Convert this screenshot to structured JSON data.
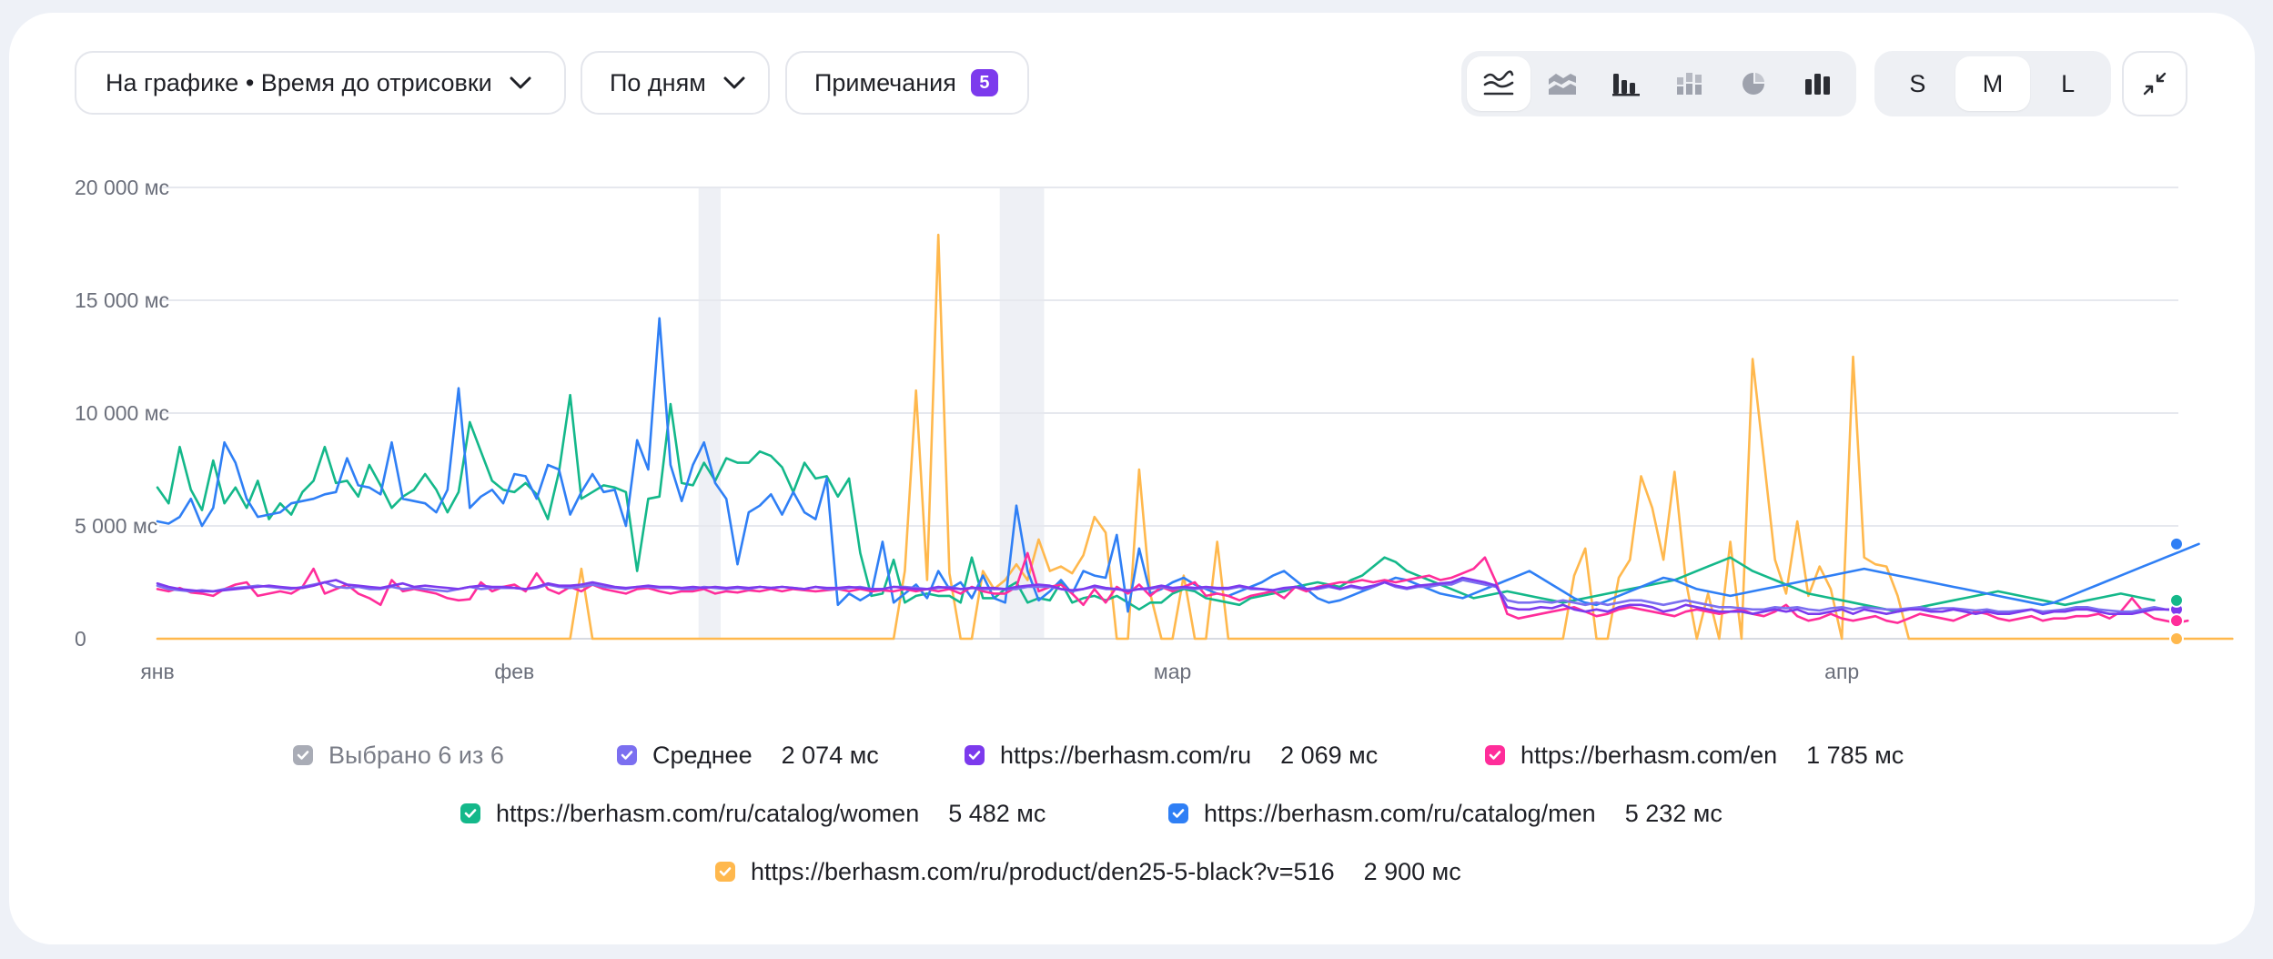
{
  "toolbar": {
    "metric_label": "На графике • Время до отрисовки",
    "grouping_label": "По дням",
    "notes_label": "Примечания",
    "notes_count": "5",
    "chart_types": [
      "line-chart-icon",
      "stacked-area-icon",
      "bar-chart-icon",
      "stacked-bar-icon",
      "pie-chart-icon",
      "column-chart-icon"
    ],
    "active_chart_type": "line-chart-icon",
    "sizes": [
      "S",
      "M",
      "L"
    ],
    "active_size": "M"
  },
  "legend": {
    "selected_label": "Выбрано 6 из 6",
    "series": [
      {
        "name": "Среднее",
        "value": "2 074 мс",
        "color": "#7b6ff0"
      },
      {
        "name": "https://berhasm.com/ru",
        "value": "2 069 мс",
        "color": "#7c3aed"
      },
      {
        "name": "https://berhasm.com/en",
        "value": "1 785 мс",
        "color": "#ff2d9a"
      },
      {
        "name": "https://berhasm.com/ru/catalog/women",
        "value": "5 482 мс",
        "color": "#14b88a"
      },
      {
        "name": "https://berhasm.com/ru/catalog/men",
        "value": "5 232 мс",
        "color": "#2f7ff5"
      },
      {
        "name": "https://berhasm.com/ru/product/den25-5-black?v=516",
        "value": "2 900 мс",
        "color": "#ffb84d"
      }
    ]
  },
  "chart_data": {
    "type": "line",
    "ylim": [
      0,
      20000
    ],
    "y_ticks": [
      "20 000 мс",
      "15 000 мс",
      "10 000 мс",
      "5 000 мс",
      "0"
    ],
    "y_tick_values": [
      20000,
      15000,
      10000,
      5000,
      0
    ],
    "x_tick_labels": [
      "янв",
      "фев",
      "мар",
      "апр"
    ],
    "x_tick_days": [
      1,
      33,
      92,
      152
    ],
    "day_count": 182,
    "annotation_days": [
      [
        50,
        51
      ],
      [
        77,
        80
      ]
    ],
    "series": [
      {
        "name": "Среднее",
        "color": "#7b6ff0",
        "values": [
          2350,
          2200,
          2150,
          2100,
          2150,
          2100,
          2200,
          2250,
          2300,
          2350,
          2300,
          2250,
          2200,
          2300,
          2400,
          2500,
          2300,
          2250,
          2300,
          2200,
          2200,
          2300,
          2200,
          2250,
          2200,
          2150,
          2100,
          2200,
          2300,
          2200,
          2250,
          2250,
          2250,
          2200,
          2250,
          2400,
          2300,
          2250,
          2300,
          2400,
          2300,
          2250,
          2200,
          2300,
          2300,
          2250,
          2250,
          2200,
          2200,
          2300,
          2250,
          2200,
          2250,
          2200,
          2300,
          2250,
          2300,
          2250,
          2200,
          2300,
          2200,
          2200,
          2250,
          2300,
          2200,
          2200,
          2300,
          2300,
          2250,
          2200,
          2250,
          2300,
          2200,
          2250,
          2200,
          2200,
          2200,
          2200,
          2300,
          2300,
          2300,
          2200,
          2100,
          2200,
          2300,
          2200,
          2200,
          2150,
          2200,
          2200,
          2300,
          2200,
          2250,
          2200,
          2250,
          2200,
          2200,
          2300,
          2200,
          2200,
          2150,
          2200,
          2300,
          2200,
          2200,
          2300,
          2200,
          2300,
          2200,
          2300,
          2500,
          2300,
          2200,
          2300,
          2300,
          2400,
          2400,
          2600,
          2500,
          2400,
          2300,
          1700,
          1600,
          1600,
          1650,
          1600,
          1700,
          1600,
          1500,
          1600,
          1500,
          1600,
          1700,
          1700,
          1600,
          1500,
          1600,
          1700,
          1600,
          1500,
          1400,
          1400,
          1350,
          1300,
          1300,
          1400,
          1350,
          1400,
          1300,
          1250,
          1350,
          1400,
          1300,
          1400,
          1350,
          1300,
          1300,
          1350,
          1400,
          1300,
          1350,
          1350,
          1300,
          1250,
          1300,
          1200,
          1200,
          1250,
          1300,
          1200,
          1250,
          1300,
          1400,
          1400,
          1300,
          1250,
          1200,
          1200,
          1300,
          1400,
          1300,
          1250
        ]
      },
      {
        "name": "https://berhasm.com/ru",
        "color": "#7c3aed",
        "values": [
          2450,
          2300,
          2200,
          2150,
          2100,
          2100,
          2150,
          2200,
          2250,
          2300,
          2350,
          2300,
          2250,
          2250,
          2350,
          2500,
          2600,
          2400,
          2350,
          2300,
          2250,
          2350,
          2450,
          2300,
          2350,
          2300,
          2250,
          2200,
          2300,
          2350,
          2300,
          2300,
          2250,
          2200,
          2300,
          2450,
          2350,
          2350,
          2400,
          2500,
          2400,
          2300,
          2250,
          2300,
          2350,
          2300,
          2300,
          2250,
          2300,
          2250,
          2300,
          2250,
          2300,
          2250,
          2300,
          2250,
          2300,
          2250,
          2200,
          2300,
          2250,
          2250,
          2300,
          2250,
          2200,
          2200,
          2300,
          2250,
          2200,
          2200,
          2300,
          2250,
          2200,
          2250,
          2250,
          2250,
          2200,
          2300,
          2350,
          2400,
          2350,
          2200,
          2150,
          2200,
          2350,
          2250,
          2200,
          2100,
          2200,
          2250,
          2350,
          2250,
          2300,
          2250,
          2300,
          2250,
          2250,
          2350,
          2250,
          2200,
          2150,
          2250,
          2300,
          2200,
          2250,
          2350,
          2200,
          2350,
          2250,
          2350,
          2500,
          2350,
          2250,
          2350,
          2400,
          2450,
          2500,
          2700,
          2600,
          2500,
          2350,
          1400,
          1300,
          1300,
          1400,
          1350,
          1500,
          1300,
          1200,
          1300,
          1200,
          1400,
          1500,
          1500,
          1400,
          1200,
          1300,
          1500,
          1400,
          1300,
          1200,
          1200,
          1200,
          1100,
          1200,
          1300,
          1200,
          1300,
          1100,
          1100,
          1200,
          1300,
          1100,
          1300,
          1200,
          1100,
          1200,
          1300,
          1300,
          1200,
          1200,
          1300,
          1200,
          1100,
          1200,
          1100,
          1100,
          1200,
          1300,
          1100,
          1200,
          1200,
          1300,
          1300,
          1200,
          1100,
          1100,
          1100,
          1200,
          1300,
          1300,
          1300
        ]
      },
      {
        "name": "https://berhasm.com/en",
        "color": "#ff2d9a",
        "values": [
          2200,
          2100,
          2250,
          2050,
          2000,
          1900,
          2200,
          2400,
          2500,
          1900,
          2000,
          2100,
          2000,
          2300,
          3100,
          2000,
          2200,
          2400,
          2000,
          1800,
          1500,
          2600,
          2100,
          2200,
          2100,
          2000,
          1800,
          1700,
          1750,
          2500,
          2100,
          2300,
          2400,
          2100,
          2900,
          2200,
          2000,
          2300,
          2100,
          2400,
          2200,
          2100,
          2000,
          2200,
          2250,
          2100,
          2000,
          2100,
          2100,
          2200,
          2000,
          2100,
          2050,
          2150,
          2100,
          2200,
          2100,
          2200,
          2150,
          2100,
          2150,
          2200,
          2100,
          2200,
          2100,
          2150,
          2100,
          2200,
          2100,
          2200,
          2100,
          2200,
          2000,
          2300,
          2100,
          2000,
          2000,
          2300,
          3800,
          2100,
          2300,
          2400,
          2000,
          1500,
          2200,
          1600,
          2300,
          2000,
          2400,
          1900,
          2300,
          2100,
          2300,
          2500,
          1900,
          2000,
          1900,
          1700,
          1900,
          2000,
          2100,
          1800,
          2300,
          2100,
          2300,
          2400,
          2500,
          2500,
          2600,
          2500,
          2600,
          2500,
          2600,
          2700,
          2800,
          2600,
          2700,
          2900,
          3100,
          3600,
          2500,
          1100,
          900,
          1000,
          1100,
          1200,
          1300,
          1400,
          1200,
          1000,
          1100,
          1300,
          1400,
          1300,
          1200,
          1100,
          1000,
          1200,
          1300,
          1200,
          1100,
          1200,
          1300,
          1100,
          1000,
          1200,
          1500,
          1000,
          800,
          900,
          1100,
          900,
          800,
          900,
          1000,
          800,
          700,
          900,
          1100,
          1000,
          900,
          800,
          1000,
          1200,
          1100,
          900,
          800,
          900,
          1000,
          800,
          900,
          900,
          1000,
          1000,
          1100,
          900,
          1200,
          1800,
          1200,
          900,
          800,
          700,
          800
        ]
      },
      {
        "name": "https://berhasm.com/ru/catalog/women",
        "color": "#14b88a",
        "values": [
          6700,
          6000,
          8500,
          6600,
          5700,
          7900,
          6000,
          6700,
          5800,
          7000,
          5300,
          6000,
          5500,
          6500,
          7000,
          8500,
          6900,
          7000,
          6300,
          7700,
          6800,
          5800,
          6300,
          6600,
          7300,
          6600,
          5600,
          6500,
          9600,
          8300,
          7000,
          6600,
          6500,
          6900,
          6400,
          5300,
          7400,
          10800,
          6200,
          6500,
          6800,
          6700,
          6500,
          3000,
          6200,
          6300,
          10400,
          6900,
          6800,
          7800,
          7000,
          8000,
          7800,
          7800,
          8300,
          8100,
          7600,
          6500,
          7800,
          7100,
          7200,
          6300,
          7100,
          3800,
          1900,
          2000,
          3500,
          1600,
          1900,
          2000,
          1900,
          1900,
          1600,
          3600,
          1800,
          1800,
          2200,
          2500,
          1600,
          1800,
          1700,
          2500,
          1600,
          1800,
          1900,
          1700,
          1900,
          1600,
          1300,
          1600,
          1600,
          2000,
          2200,
          2100,
          1800,
          1700,
          1600,
          1500,
          1800,
          1900,
          2000,
          2100,
          2300,
          2400,
          2500,
          2400,
          2300,
          2600,
          2800,
          3200,
          3600,
          3400,
          3000,
          2800,
          2600,
          2400,
          2200,
          2000,
          1800,
          1900,
          2000,
          2100,
          2000,
          1900,
          1800,
          1700,
          1600,
          1700,
          1800,
          1900,
          2000,
          2100,
          2200,
          2300,
          2400,
          2500,
          2600,
          2800,
          3000,
          3200,
          3400,
          3600,
          3300,
          3000,
          2800,
          2600,
          2400,
          2200,
          2000,
          1900,
          1800,
          1700,
          1600,
          1500,
          1400,
          1300,
          1200,
          1300,
          1400,
          1500,
          1600,
          1700,
          1800,
          1900,
          2000,
          2100,
          2000,
          1900,
          1800,
          1700,
          1600,
          1500,
          1600,
          1700,
          1800,
          1900,
          2000,
          1900,
          1800,
          1700
        ]
      },
      {
        "name": "https://berhasm.com/ru/catalog/men",
        "color": "#2f7ff5",
        "values": [
          5200,
          5100,
          5400,
          6200,
          5000,
          5800,
          8700,
          7800,
          6200,
          5400,
          5500,
          5600,
          6000,
          6100,
          6200,
          6400,
          6500,
          8000,
          6800,
          6700,
          6400,
          8700,
          6200,
          6100,
          6000,
          5600,
          6600,
          11100,
          5800,
          6300,
          6600,
          6000,
          7300,
          7200,
          6200,
          7700,
          7500,
          5500,
          6500,
          7300,
          6500,
          6600,
          5000,
          8800,
          7500,
          14200,
          7700,
          6100,
          7700,
          8700,
          6900,
          6200,
          3300,
          5600,
          5900,
          6400,
          5500,
          6500,
          5600,
          5300,
          7100,
          1500,
          2000,
          1700,
          2000,
          4300,
          1600,
          2000,
          2400,
          1800,
          3000,
          2200,
          2500,
          1800,
          2800,
          1800,
          1600,
          5900,
          3000,
          1700,
          2100,
          2600,
          2000,
          3000,
          2800,
          2700,
          4600,
          1200,
          4000,
          2000,
          2200,
          2500,
          2700,
          2400,
          2200,
          2000,
          1900,
          2100,
          2300,
          2500,
          2800,
          3000,
          2600,
          2200,
          1800,
          1600,
          1700,
          1900,
          2100,
          2300,
          2500,
          2700,
          2600,
          2400,
          2200,
          2000,
          1900,
          1800,
          2000,
          2200,
          2400,
          2600,
          2800,
          3000,
          2700,
          2400,
          2100,
          1800,
          1600,
          1500,
          1700,
          1900,
          2100,
          2300,
          2500,
          2700,
          2600,
          2400,
          2200,
          2100,
          2000,
          1900,
          2000,
          2100,
          2200,
          2300,
          2400,
          2500,
          2600,
          2700,
          2800,
          2900,
          3000,
          3100,
          3000,
          2900,
          2800,
          2700,
          2600,
          2500,
          2400,
          2300,
          2200,
          2100,
          2000,
          1900,
          1800,
          1700,
          1600,
          1500,
          1600,
          1800,
          2000,
          2200,
          2400,
          2600,
          2800,
          3000,
          3200,
          3400,
          3600,
          3800,
          4000,
          4200
        ]
      },
      {
        "name": "https://berhasm.com/ru/product/den25-5-black?v=516",
        "color": "#ffb84d",
        "values": [
          0,
          0,
          0,
          0,
          0,
          0,
          0,
          0,
          0,
          0,
          0,
          0,
          0,
          0,
          0,
          0,
          0,
          0,
          0,
          0,
          0,
          0,
          0,
          0,
          0,
          0,
          0,
          0,
          0,
          0,
          0,
          0,
          0,
          0,
          0,
          0,
          0,
          0,
          3100,
          0,
          0,
          0,
          0,
          0,
          0,
          0,
          0,
          0,
          0,
          0,
          0,
          0,
          0,
          0,
          0,
          0,
          0,
          0,
          0,
          0,
          0,
          0,
          0,
          0,
          0,
          0,
          0,
          3000,
          11000,
          2600,
          17900,
          2900,
          0,
          0,
          3000,
          2200,
          2600,
          3300,
          2600,
          4400,
          3000,
          3200,
          2900,
          3700,
          5400,
          4700,
          0,
          0,
          7500,
          2000,
          0,
          0,
          2800,
          0,
          0,
          4300,
          0,
          0,
          0,
          0,
          0,
          0,
          0,
          0,
          0,
          0,
          0,
          0,
          0,
          0,
          0,
          0,
          0,
          0,
          0,
          0,
          0,
          0,
          0,
          0,
          0,
          0,
          0,
          0,
          0,
          0,
          0,
          2800,
          4000,
          0,
          0,
          2700,
          3500,
          7200,
          5800,
          3500,
          7400,
          2600,
          0,
          2000,
          0,
          4300,
          0,
          12400,
          8000,
          3500,
          2000,
          5200,
          1900,
          3200,
          2200,
          0,
          12500,
          3600,
          3300,
          3200,
          1900,
          0,
          0,
          0,
          0,
          0,
          0,
          0,
          0,
          0,
          0,
          0,
          0,
          0,
          0,
          0,
          0,
          0,
          0,
          0,
          0,
          0,
          0,
          0,
          0,
          0,
          0,
          0,
          0,
          0,
          0
        ]
      }
    ]
  }
}
